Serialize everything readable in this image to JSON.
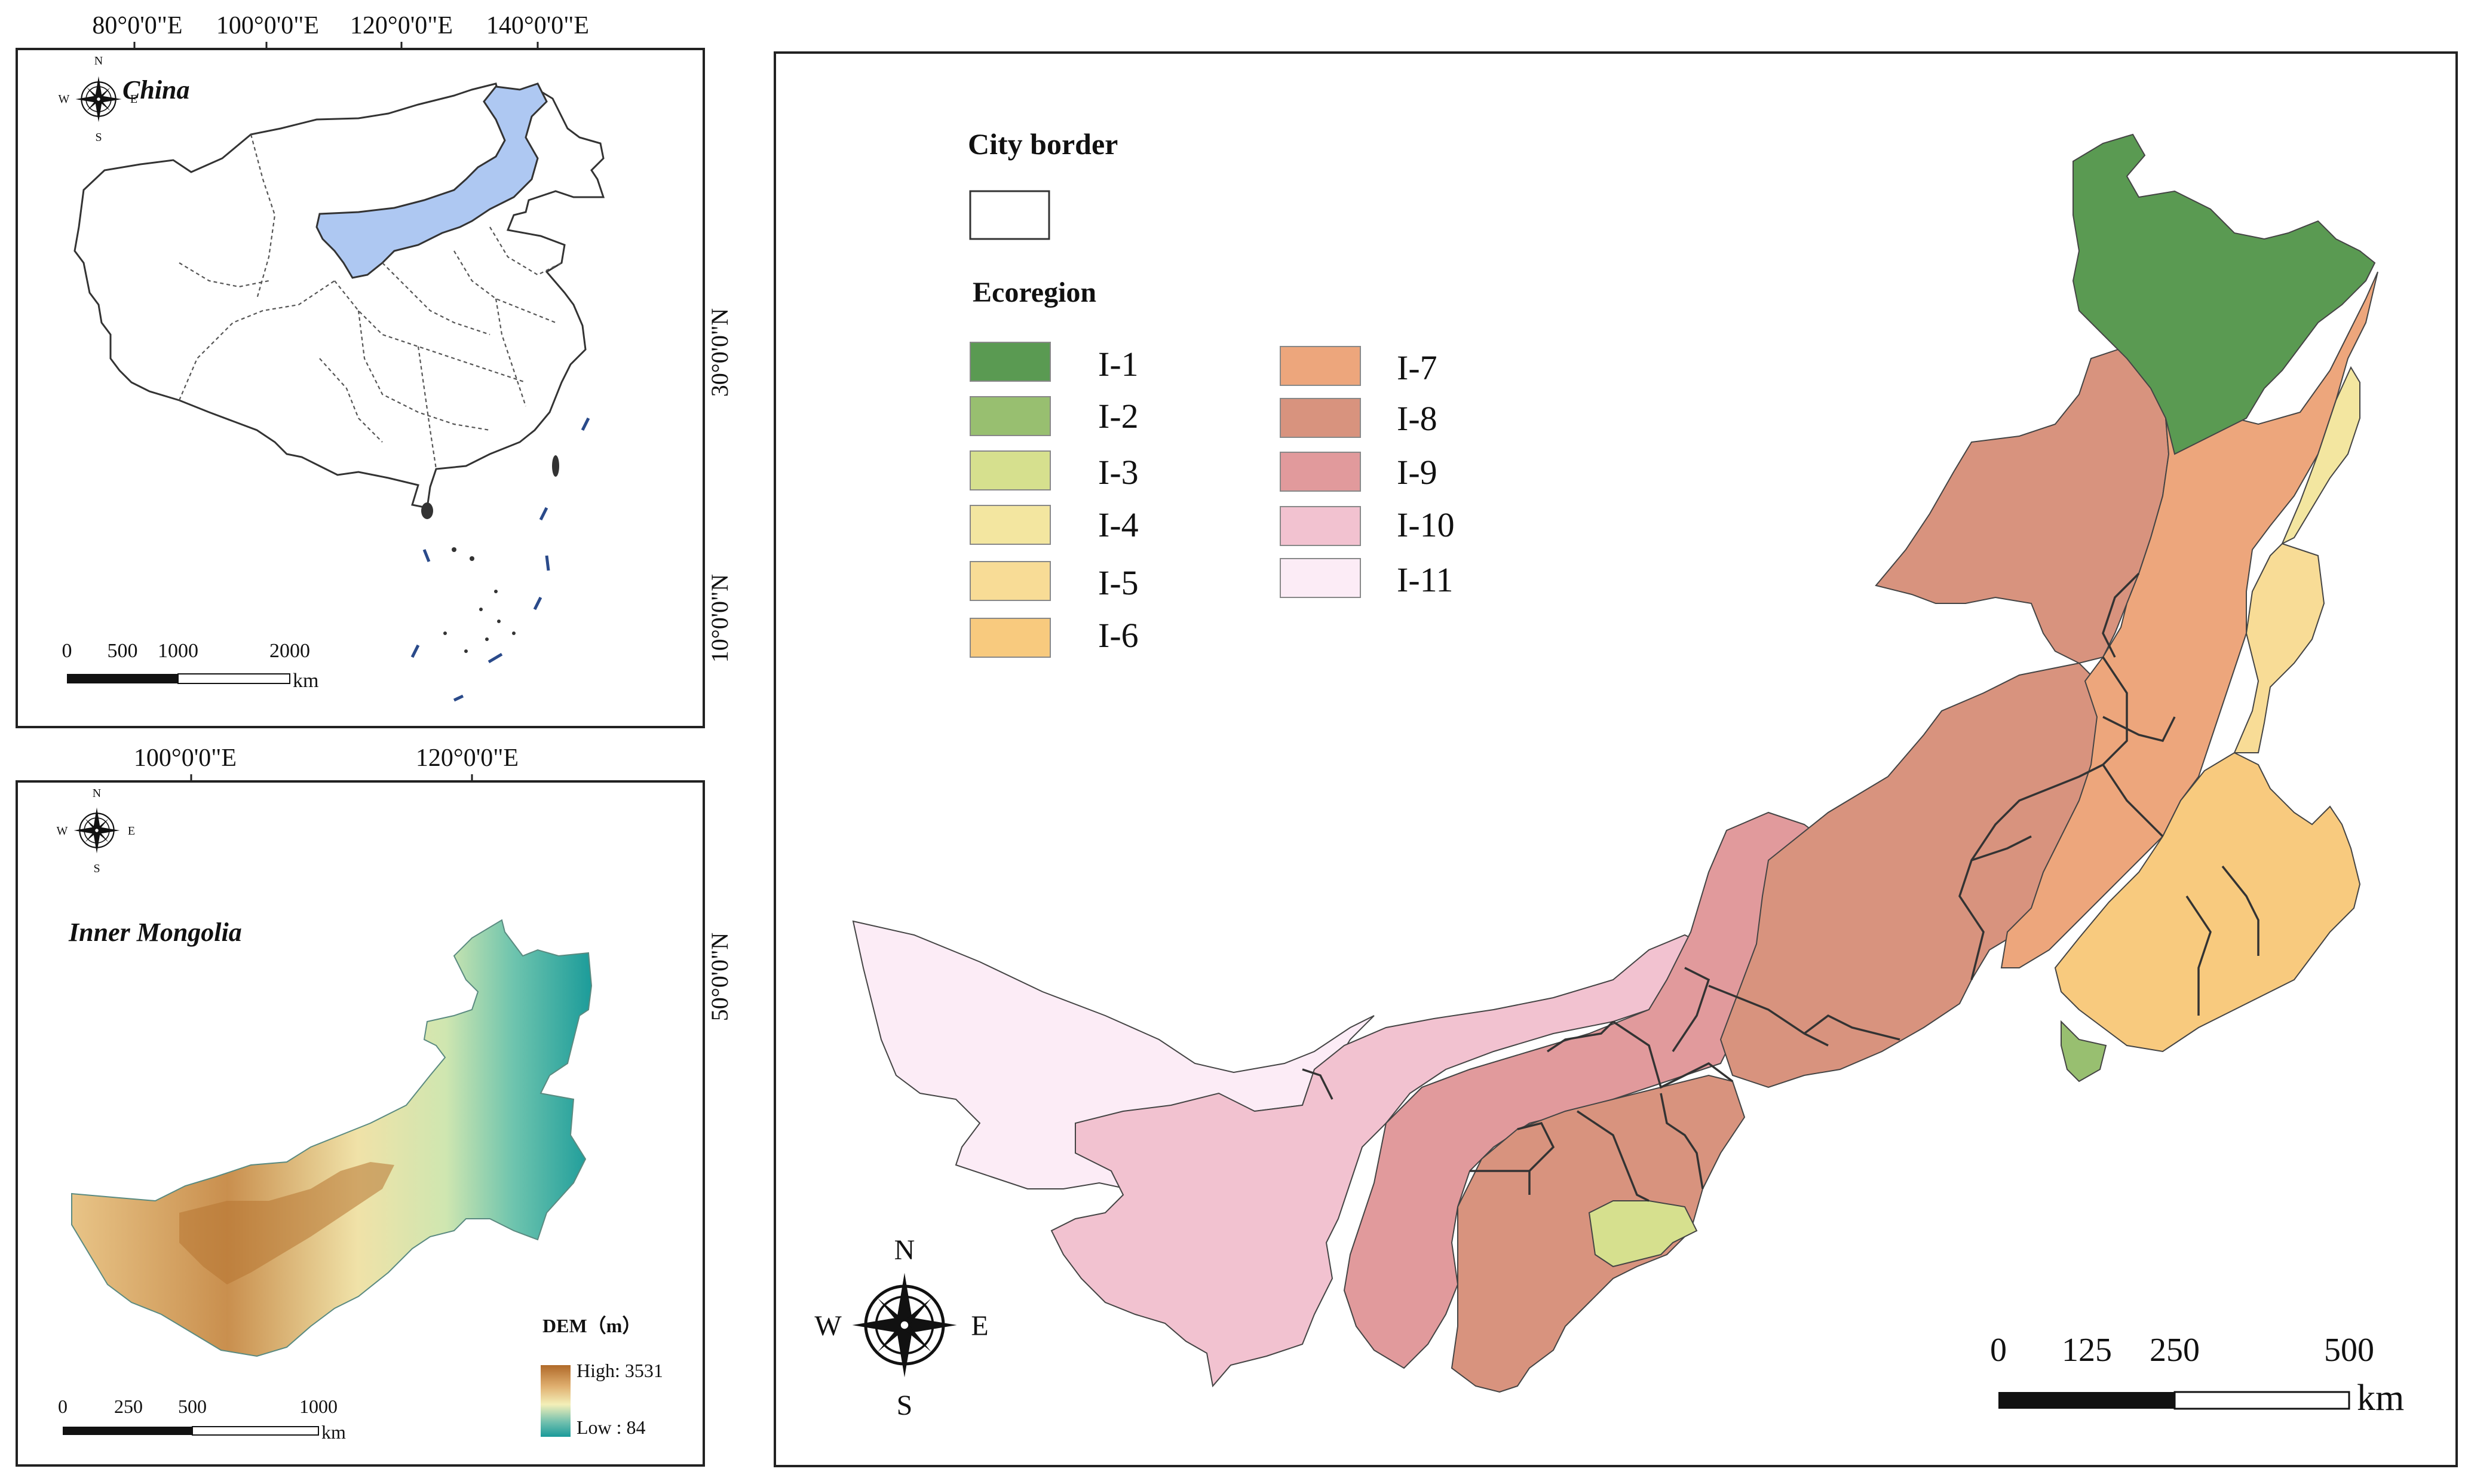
{
  "china_panel": {
    "title": "China",
    "lon_labels": [
      "80°0'0\"E",
      "100°0'0\"E",
      "120°0'0\"E",
      "140°0'0\"E"
    ],
    "lat_labels": [
      "30°0'0\"N",
      "10°0'0\"N"
    ],
    "scale": {
      "ticks": [
        "0",
        "500",
        "1000",
        "2000"
      ],
      "unit": "km"
    },
    "compass": {
      "n": "N",
      "s": "S",
      "e": "E",
      "w": "W"
    },
    "highlight_color": "#aec8f2"
  },
  "im_panel": {
    "title": "Inner Mongolia",
    "lon_labels": [
      "100°0'0\"E",
      "120°0'0\"E"
    ],
    "lat_labels": [
      "50°0'0\"N"
    ],
    "dem": {
      "title": "DEM（m）",
      "high": "High: 3531",
      "low": "Low : 84"
    },
    "scale": {
      "ticks": [
        "0",
        "250",
        "500",
        "1000"
      ],
      "unit": "km"
    },
    "compass": {
      "n": "N",
      "s": "S",
      "e": "E",
      "w": "W"
    }
  },
  "main_map": {
    "legend": {
      "city_border_title": "City border",
      "ecoregion_title": "Ecoregion",
      "items": [
        {
          "code": "I-1",
          "color": "#5a9a52"
        },
        {
          "code": "I-2",
          "color": "#98bf70"
        },
        {
          "code": "I-3",
          "color": "#d6e08e"
        },
        {
          "code": "I-4",
          "color": "#f3e6a0"
        },
        {
          "code": "I-5",
          "color": "#f8dc96"
        },
        {
          "code": "I-6",
          "color": "#f8ca7e"
        },
        {
          "code": "I-7",
          "color": "#eda67c"
        },
        {
          "code": "I-8",
          "color": "#d8937e"
        },
        {
          "code": "I-9",
          "color": "#e19a9c"
        },
        {
          "code": "I-10",
          "color": "#f2c2d0"
        },
        {
          "code": "I-11",
          "color": "#fcecf6"
        }
      ]
    },
    "scale": {
      "ticks": [
        "0",
        "125",
        "250",
        "500"
      ],
      "unit": "km"
    },
    "compass": {
      "n": "N",
      "s": "S",
      "e": "E",
      "w": "W"
    }
  }
}
